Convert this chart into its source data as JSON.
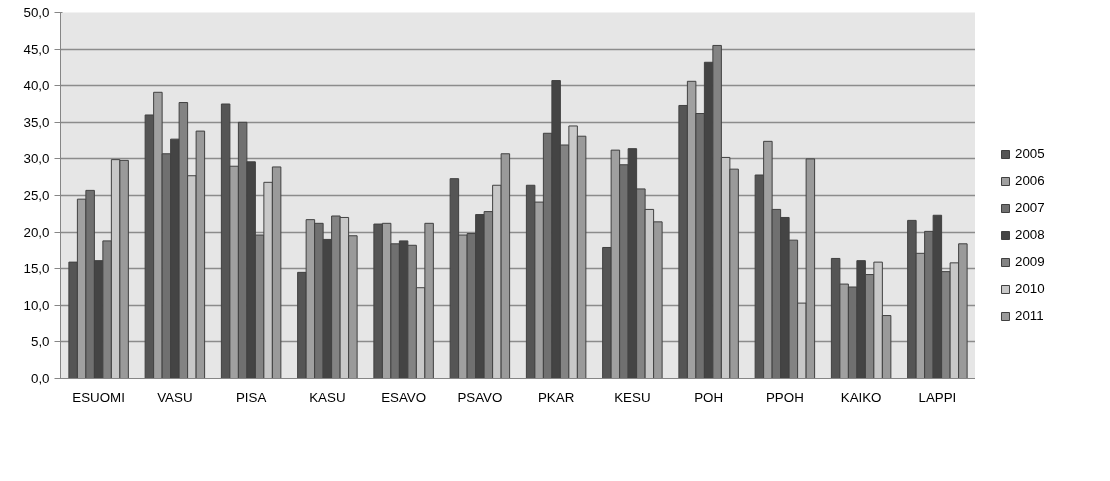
{
  "chart_data": {
    "type": "bar",
    "categories": [
      "ESUOMI",
      "VASU",
      "PISA",
      "KASU",
      "ESAVO",
      "PSAVO",
      "PKAR",
      "KESU",
      "POH",
      "PPOH",
      "KAIKO",
      "LAPPI"
    ],
    "series": [
      {
        "name": "2005",
        "color": "#555555",
        "values": [
          15.9,
          36.0,
          37.5,
          14.5,
          21.1,
          27.3,
          26.4,
          17.9,
          37.3,
          27.8,
          16.4,
          21.6
        ]
      },
      {
        "name": "2006",
        "color": "#a0a0a0",
        "values": [
          24.5,
          39.1,
          29.0,
          21.7,
          21.2,
          19.6,
          24.1,
          31.2,
          40.6,
          32.4,
          12.9,
          17.1
        ]
      },
      {
        "name": "2007",
        "color": "#707070",
        "values": [
          25.7,
          30.7,
          35.0,
          21.2,
          18.4,
          19.8,
          33.5,
          29.2,
          36.2,
          23.1,
          12.5,
          20.1
        ]
      },
      {
        "name": "2008",
        "color": "#444444",
        "values": [
          16.1,
          32.7,
          29.6,
          19.0,
          18.8,
          22.4,
          40.7,
          31.4,
          43.2,
          22.0,
          16.1,
          22.3
        ]
      },
      {
        "name": "2009",
        "color": "#838383",
        "values": [
          18.8,
          37.7,
          19.6,
          22.2,
          18.2,
          22.8,
          31.9,
          25.9,
          45.5,
          18.9,
          14.2,
          14.6
        ]
      },
      {
        "name": "2010",
        "color": "#c8c8c8",
        "values": [
          29.9,
          27.7,
          26.8,
          22.0,
          12.4,
          26.4,
          34.5,
          23.1,
          30.2,
          10.3,
          15.9,
          15.8
        ]
      },
      {
        "name": "2011",
        "color": "#9a9a9a",
        "values": [
          29.8,
          33.8,
          28.9,
          19.5,
          21.2,
          30.7,
          33.1,
          21.4,
          28.6,
          30.0,
          8.6,
          18.4
        ]
      }
    ],
    "ylim": [
      0,
      50
    ],
    "yticks": [
      {
        "value": 0,
        "label": "0,0"
      },
      {
        "value": 5,
        "label": "5,0"
      },
      {
        "value": 10,
        "label": "10,0"
      },
      {
        "value": 15,
        "label": "15,0"
      },
      {
        "value": 20,
        "label": "20,0"
      },
      {
        "value": 25,
        "label": "25,0"
      },
      {
        "value": 30,
        "label": "30,0"
      },
      {
        "value": 35,
        "label": "35,0"
      },
      {
        "value": 40,
        "label": "40,0"
      },
      {
        "value": 45,
        "label": "45,0"
      },
      {
        "value": 50,
        "label": "50,0"
      }
    ],
    "grid": "y",
    "legend": "right"
  }
}
